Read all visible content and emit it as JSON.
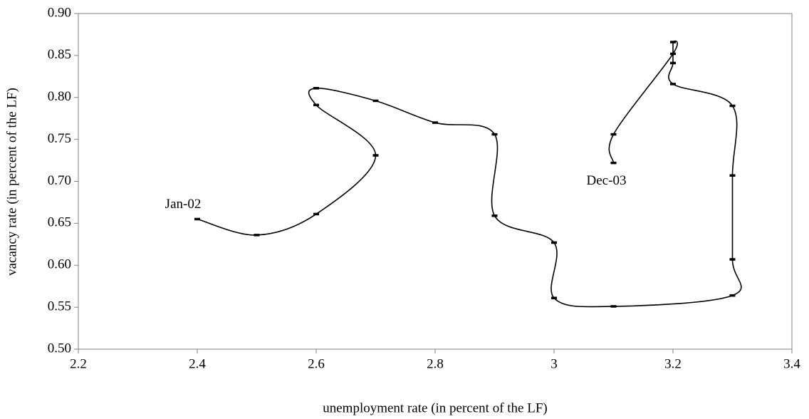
{
  "chart_data": {
    "type": "line",
    "x_label": "unemployment rate (in percent of the LF)",
    "y_label": "vacancy rate (in percent of the LF)",
    "start_label": "Jan-02",
    "end_label": "Dec-03",
    "x": [
      2.4,
      2.5,
      2.6,
      2.7,
      2.6,
      2.6,
      2.7,
      2.8,
      2.9,
      2.9,
      3.0,
      3.0,
      3.1,
      3.3,
      3.3,
      3.3,
      3.3,
      3.2,
      3.2,
      3.2,
      3.2,
      3.1,
      3.1
    ],
    "values": [
      0.655,
      0.636,
      0.661,
      0.731,
      0.791,
      0.811,
      0.796,
      0.77,
      0.756,
      0.659,
      0.627,
      0.561,
      0.551,
      0.564,
      0.607,
      0.707,
      0.79,
      0.816,
      0.841,
      0.866,
      0.852,
      0.756,
      0.722
    ],
    "color": "#000000",
    "xlim": [
      2.2,
      3.4
    ],
    "xticks": [
      2.2,
      2.4,
      2.6,
      2.8,
      3,
      3.2,
      3.4
    ],
    "ylim": [
      0.5,
      0.9
    ],
    "yticks": [
      {
        "value": 0.5,
        "label": "0.50"
      },
      0.55,
      {
        "value": 0.6,
        "label": "0.60"
      },
      0.65,
      {
        "value": 0.7,
        "label": "0.70"
      },
      0.75,
      {
        "value": 0.8,
        "label": "0.80"
      },
      0.85,
      {
        "value": 0.9,
        "label": "0.90"
      }
    ],
    "grid": false
  }
}
